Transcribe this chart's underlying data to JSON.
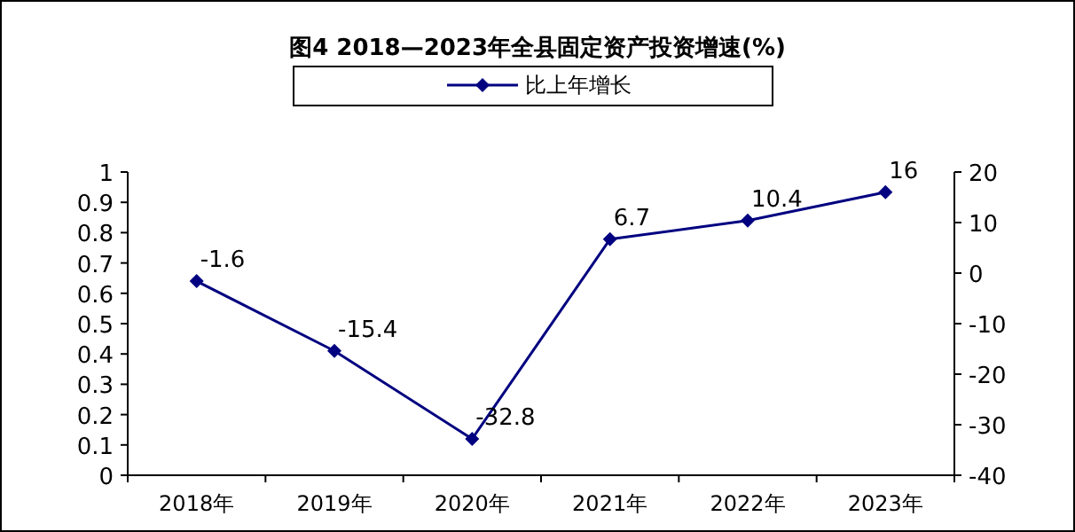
{
  "chart_data": {
    "type": "line",
    "title": "图4  2018—2023年全县固定资产投资增速(%)",
    "categories": [
      "2018年",
      "2019年",
      "2020年",
      "2021年",
      "2022年",
      "2023年"
    ],
    "series": [
      {
        "name": "比上年增长",
        "color": "#000080",
        "values": [
          -1.6,
          -15.4,
          -32.8,
          6.7,
          10.4,
          16
        ],
        "axis": "y2"
      }
    ],
    "ylim": [
      0,
      1
    ],
    "yticks": [
      0,
      0.1,
      0.2,
      0.3,
      0.4,
      0.5,
      0.6,
      0.7,
      0.8,
      0.9,
      1
    ],
    "y2lim": [
      -40,
      20
    ],
    "y2ticks": [
      -40,
      -30,
      -20,
      -10,
      0,
      10,
      20
    ],
    "data_labels": true,
    "legend": "top",
    "marker": "diamond",
    "line_style": "solid",
    "grid": false
  }
}
